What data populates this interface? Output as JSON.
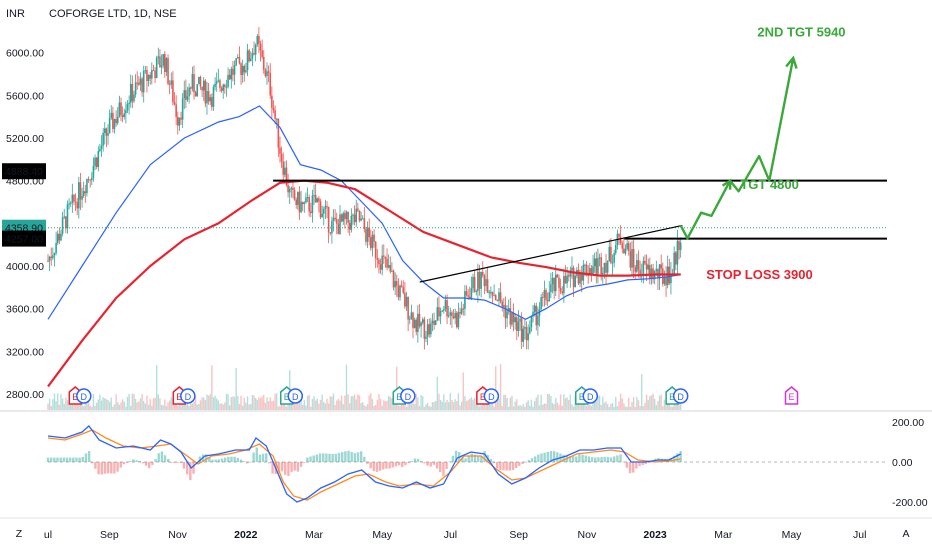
{
  "header": {
    "currency": "INR",
    "symbol_line": "COFORGE LTD, 1D, NSE"
  },
  "corner": {
    "left_btn": "Z",
    "right_btn": "A"
  },
  "colors": {
    "price_up": "#26a69a",
    "price_down": "#ef5350",
    "ma_fast": "#2962ff",
    "ma_slow": "#e8232f",
    "annotation_green": "#3aa83a",
    "annotation_red": "#e8232f",
    "level_line": "#000000"
  },
  "chart_data": [
    {
      "type": "candlestick",
      "y_axis": {
        "range": [
          2650,
          6250
        ],
        "ticks": [
          {
            "v": 6000,
            "label": "6000.00"
          },
          {
            "v": 5600,
            "label": "5600.00"
          },
          {
            "v": 5200,
            "label": "5200.00"
          },
          {
            "v": 4800,
            "label": "4800.00"
          },
          {
            "v": 4000,
            "label": "4000.00"
          },
          {
            "v": 3600,
            "label": "3600.00"
          },
          {
            "v": 3200,
            "label": "3200.00"
          },
          {
            "v": 2800,
            "label": "2800.00"
          }
        ],
        "price_tags": [
          {
            "v": 4888.4,
            "label": "4888.40",
            "style": "dark"
          },
          {
            "v": 4358.9,
            "label": "4358.90",
            "style": "green"
          },
          {
            "v": 4257.0,
            "label": "4257.00",
            "style": "dark"
          }
        ]
      },
      "x_axis": {
        "ticks": [
          {
            "t": 0,
            "label": "ul",
            "bold": false
          },
          {
            "t": 1.8,
            "label": "Sep",
            "bold": false
          },
          {
            "t": 3.8,
            "label": "Nov",
            "bold": false
          },
          {
            "t": 5.8,
            "label": "2022",
            "bold": true
          },
          {
            "t": 7.8,
            "label": "Mar",
            "bold": false
          },
          {
            "t": 9.8,
            "label": "May",
            "bold": false
          },
          {
            "t": 11.8,
            "label": "Jul",
            "bold": false
          },
          {
            "t": 13.8,
            "label": "Sep",
            "bold": false
          },
          {
            "t": 15.8,
            "label": "Nov",
            "bold": false
          },
          {
            "t": 17.8,
            "label": "2023",
            "bold": true
          },
          {
            "t": 19.8,
            "label": "Mar",
            "bold": false
          },
          {
            "t": 21.8,
            "label": "May",
            "bold": false
          },
          {
            "t": 23.8,
            "label": "Jul",
            "bold": false
          }
        ]
      },
      "price_path": [
        [
          0,
          4050
        ],
        [
          0.6,
          4500
        ],
        [
          1.2,
          4850
        ],
        [
          1.8,
          5300
        ],
        [
          2.4,
          5600
        ],
        [
          3.0,
          5800
        ],
        [
          3.4,
          5950
        ],
        [
          3.8,
          5400
        ],
        [
          4.2,
          5700
        ],
        [
          4.8,
          5600
        ],
        [
          5.3,
          5800
        ],
        [
          5.8,
          5900
        ],
        [
          6.1,
          6100
        ],
        [
          6.5,
          5700
        ],
        [
          6.8,
          5100
        ],
        [
          7.1,
          4650
        ],
        [
          7.5,
          4550
        ],
        [
          7.9,
          4600
        ],
        [
          8.3,
          4380
        ],
        [
          8.7,
          4400
        ],
        [
          9.1,
          4450
        ],
        [
          9.5,
          4200
        ],
        [
          9.9,
          4000
        ],
        [
          10.4,
          3700
        ],
        [
          10.8,
          3450
        ],
        [
          11.2,
          3400
        ],
        [
          11.6,
          3650
        ],
        [
          12.0,
          3500
        ],
        [
          12.4,
          3800
        ],
        [
          12.8,
          3900
        ],
        [
          13.2,
          3700
        ],
        [
          13.6,
          3500
        ],
        [
          14.0,
          3350
        ],
        [
          14.4,
          3600
        ],
        [
          14.8,
          3800
        ],
        [
          15.2,
          3850
        ],
        [
          15.6,
          3950
        ],
        [
          16.0,
          4000
        ],
        [
          16.4,
          4050
        ],
        [
          16.8,
          4270
        ],
        [
          17.2,
          4000
        ],
        [
          17.6,
          3950
        ],
        [
          18.0,
          3900
        ],
        [
          18.3,
          3950
        ],
        [
          18.55,
          4300
        ]
      ],
      "series": [
        {
          "name": "",
          "kind": "moving-average-fast",
          "points": [
            [
              0,
              3500
            ],
            [
              1,
              4000
            ],
            [
              2,
              4500
            ],
            [
              3,
              4950
            ],
            [
              4,
              5200
            ],
            [
              5,
              5350
            ],
            [
              5.6,
              5400
            ],
            [
              6.2,
              5500
            ],
            [
              6.8,
              5300
            ],
            [
              7.4,
              4950
            ],
            [
              8.0,
              4900
            ],
            [
              8.6,
              4800
            ],
            [
              9.2,
              4600
            ],
            [
              9.8,
              4400
            ],
            [
              10.4,
              4050
            ],
            [
              11.0,
              3850
            ],
            [
              11.6,
              3700
            ],
            [
              12.2,
              3700
            ],
            [
              12.8,
              3680
            ],
            [
              13.4,
              3600
            ],
            [
              14.0,
              3500
            ],
            [
              14.6,
              3600
            ],
            [
              15.2,
              3720
            ],
            [
              15.8,
              3800
            ],
            [
              16.4,
              3830
            ],
            [
              17.0,
              3870
            ],
            [
              17.6,
              3880
            ],
            [
              18.2,
              3900
            ],
            [
              18.55,
              3920
            ]
          ]
        },
        {
          "name": "",
          "kind": "moving-average-slow",
          "points": [
            [
              0,
              2870
            ],
            [
              1,
              3300
            ],
            [
              2,
              3700
            ],
            [
              3,
              4000
            ],
            [
              4,
              4250
            ],
            [
              5,
              4400
            ],
            [
              6,
              4620
            ],
            [
              6.8,
              4780
            ],
            [
              7.5,
              4800
            ],
            [
              8.2,
              4780
            ],
            [
              9.0,
              4720
            ],
            [
              10.0,
              4520
            ],
            [
              11.0,
              4320
            ],
            [
              12.0,
              4200
            ],
            [
              13.0,
              4080
            ],
            [
              13.8,
              4030
            ],
            [
              14.6,
              3990
            ],
            [
              15.4,
              3940
            ],
            [
              16.2,
              3910
            ],
            [
              17.0,
              3910
            ],
            [
              17.8,
              3920
            ],
            [
              18.55,
              3920
            ]
          ]
        }
      ],
      "levels": [
        {
          "from_t": 6.6,
          "y": 4800
        },
        {
          "from_t": 16.9,
          "y": 4257
        },
        {
          "from_t": 0,
          "y": 4358.9,
          "style": "dotted"
        }
      ],
      "trendline": {
        "from": [
          10.9,
          3850
        ],
        "to": [
          18.6,
          4380
        ]
      },
      "projection_path": [
        [
          18.55,
          4380
        ],
        [
          18.75,
          4260
        ],
        [
          19.15,
          4500
        ],
        [
          19.45,
          4470
        ],
        [
          20.0,
          4800
        ],
        [
          20.25,
          4700
        ],
        [
          20.85,
          5030
        ],
        [
          21.15,
          4800
        ],
        [
          21.85,
          5950
        ]
      ],
      "annotations": [
        {
          "label": "2ND TGT 5940",
          "t": 20.8,
          "y": 6150,
          "color": "green"
        },
        {
          "label": "TGT 4800",
          "t": 20.3,
          "y": 4720,
          "color": "green"
        },
        {
          "label": "STOP LOSS 3900",
          "t": 19.3,
          "y": 3880,
          "color": "red"
        }
      ],
      "event_markers": [
        {
          "t": 0.8,
          "label": "E",
          "kind": "red"
        },
        {
          "t": 1.05,
          "label": "D",
          "kind": "blue"
        },
        {
          "t": 3.85,
          "label": "E",
          "kind": "red"
        },
        {
          "t": 4.1,
          "label": "D",
          "kind": "blue"
        },
        {
          "t": 7.0,
          "label": "E",
          "kind": "teal"
        },
        {
          "t": 7.25,
          "label": "D",
          "kind": "blue"
        },
        {
          "t": 10.3,
          "label": "E",
          "kind": "teal"
        },
        {
          "t": 10.55,
          "label": "D",
          "kind": "blue"
        },
        {
          "t": 12.75,
          "label": "E",
          "kind": "red"
        },
        {
          "t": 13.0,
          "label": "D",
          "kind": "blue"
        },
        {
          "t": 15.65,
          "label": "E",
          "kind": "teal"
        },
        {
          "t": 15.9,
          "label": "D",
          "kind": "blue"
        },
        {
          "t": 18.3,
          "label": "E",
          "kind": "teal"
        },
        {
          "t": 18.55,
          "label": "D",
          "kind": "blue"
        },
        {
          "t": 21.8,
          "label": "E",
          "kind": "magenta"
        }
      ]
    },
    {
      "type": "oscillator",
      "y_axis": {
        "range": [
          -250,
          250
        ],
        "ticks": [
          {
            "v": 200,
            "label": "200.00"
          },
          {
            "v": 0,
            "label": "0.00"
          },
          {
            "v": -200,
            "label": "-200.00"
          }
        ]
      },
      "series": [
        {
          "name": "",
          "kind": "fast",
          "points": [
            [
              0,
              130
            ],
            [
              0.5,
              120
            ],
            [
              1.0,
              150
            ],
            [
              1.2,
              180
            ],
            [
              1.5,
              110
            ],
            [
              2.0,
              70
            ],
            [
              2.5,
              80
            ],
            [
              3.0,
              60
            ],
            [
              3.3,
              110
            ],
            [
              3.6,
              90
            ],
            [
              3.9,
              50
            ],
            [
              4.2,
              -30
            ],
            [
              4.6,
              30
            ],
            [
              5.0,
              40
            ],
            [
              5.5,
              60
            ],
            [
              5.9,
              60
            ],
            [
              6.1,
              120
            ],
            [
              6.4,
              80
            ],
            [
              6.8,
              -80
            ],
            [
              7.0,
              -160
            ],
            [
              7.3,
              -200
            ],
            [
              7.6,
              -180
            ],
            [
              8.0,
              -130
            ],
            [
              8.4,
              -100
            ],
            [
              8.8,
              -60
            ],
            [
              9.2,
              -40
            ],
            [
              9.6,
              -100
            ],
            [
              10.0,
              -120
            ],
            [
              10.4,
              -130
            ],
            [
              10.8,
              -100
            ],
            [
              11.2,
              -130
            ],
            [
              11.6,
              -110
            ],
            [
              12.0,
              20
            ],
            [
              12.4,
              50
            ],
            [
              12.8,
              40
            ],
            [
              13.2,
              -60
            ],
            [
              13.6,
              -110
            ],
            [
              14.0,
              -80
            ],
            [
              14.4,
              -30
            ],
            [
              14.8,
              10
            ],
            [
              15.2,
              30
            ],
            [
              15.6,
              60
            ],
            [
              16.0,
              60
            ],
            [
              16.4,
              70
            ],
            [
              16.8,
              70
            ],
            [
              17.1,
              0
            ],
            [
              17.5,
              0
            ],
            [
              17.9,
              10
            ],
            [
              18.2,
              10
            ],
            [
              18.55,
              40
            ]
          ]
        },
        {
          "name": "",
          "kind": "slow",
          "points": [
            [
              0,
              120
            ],
            [
              0.5,
              110
            ],
            [
              1.0,
              140
            ],
            [
              1.3,
              160
            ],
            [
              1.7,
              120
            ],
            [
              2.2,
              80
            ],
            [
              2.7,
              70
            ],
            [
              3.2,
              80
            ],
            [
              3.6,
              90
            ],
            [
              4.0,
              40
            ],
            [
              4.4,
              -10
            ],
            [
              4.8,
              30
            ],
            [
              5.3,
              40
            ],
            [
              5.8,
              60
            ],
            [
              6.2,
              90
            ],
            [
              6.6,
              30
            ],
            [
              6.9,
              -100
            ],
            [
              7.2,
              -170
            ],
            [
              7.6,
              -190
            ],
            [
              8.0,
              -150
            ],
            [
              8.5,
              -110
            ],
            [
              9.0,
              -70
            ],
            [
              9.4,
              -60
            ],
            [
              9.9,
              -100
            ],
            [
              10.3,
              -120
            ],
            [
              10.8,
              -110
            ],
            [
              11.3,
              -120
            ],
            [
              11.8,
              -50
            ],
            [
              12.2,
              30
            ],
            [
              12.7,
              30
            ],
            [
              13.1,
              -30
            ],
            [
              13.6,
              -90
            ],
            [
              14.0,
              -80
            ],
            [
              14.5,
              -40
            ],
            [
              15.0,
              0
            ],
            [
              15.5,
              40
            ],
            [
              16.0,
              50
            ],
            [
              16.5,
              60
            ],
            [
              16.9,
              50
            ],
            [
              17.3,
              10
            ],
            [
              17.8,
              0
            ],
            [
              18.2,
              5
            ],
            [
              18.55,
              15
            ]
          ]
        }
      ]
    }
  ]
}
